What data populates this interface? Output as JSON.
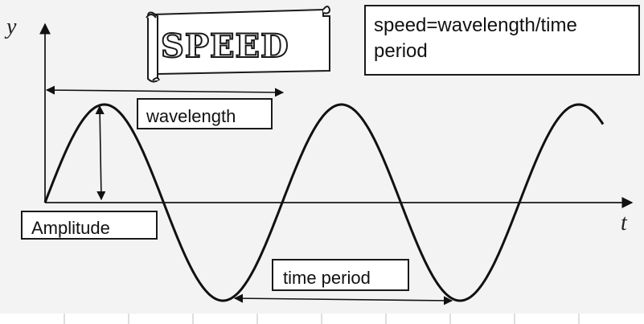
{
  "title": "SPEED",
  "formula": {
    "line1": "speed=wavelength/time",
    "line2": "period"
  },
  "labels": {
    "wavelength": "wavelength",
    "amplitude": "Amplitude",
    "time_period": "time period"
  },
  "axes": {
    "y": "y",
    "t": "t"
  },
  "colors": {
    "wave": "#111111",
    "background": "#f3f3f3"
  }
}
